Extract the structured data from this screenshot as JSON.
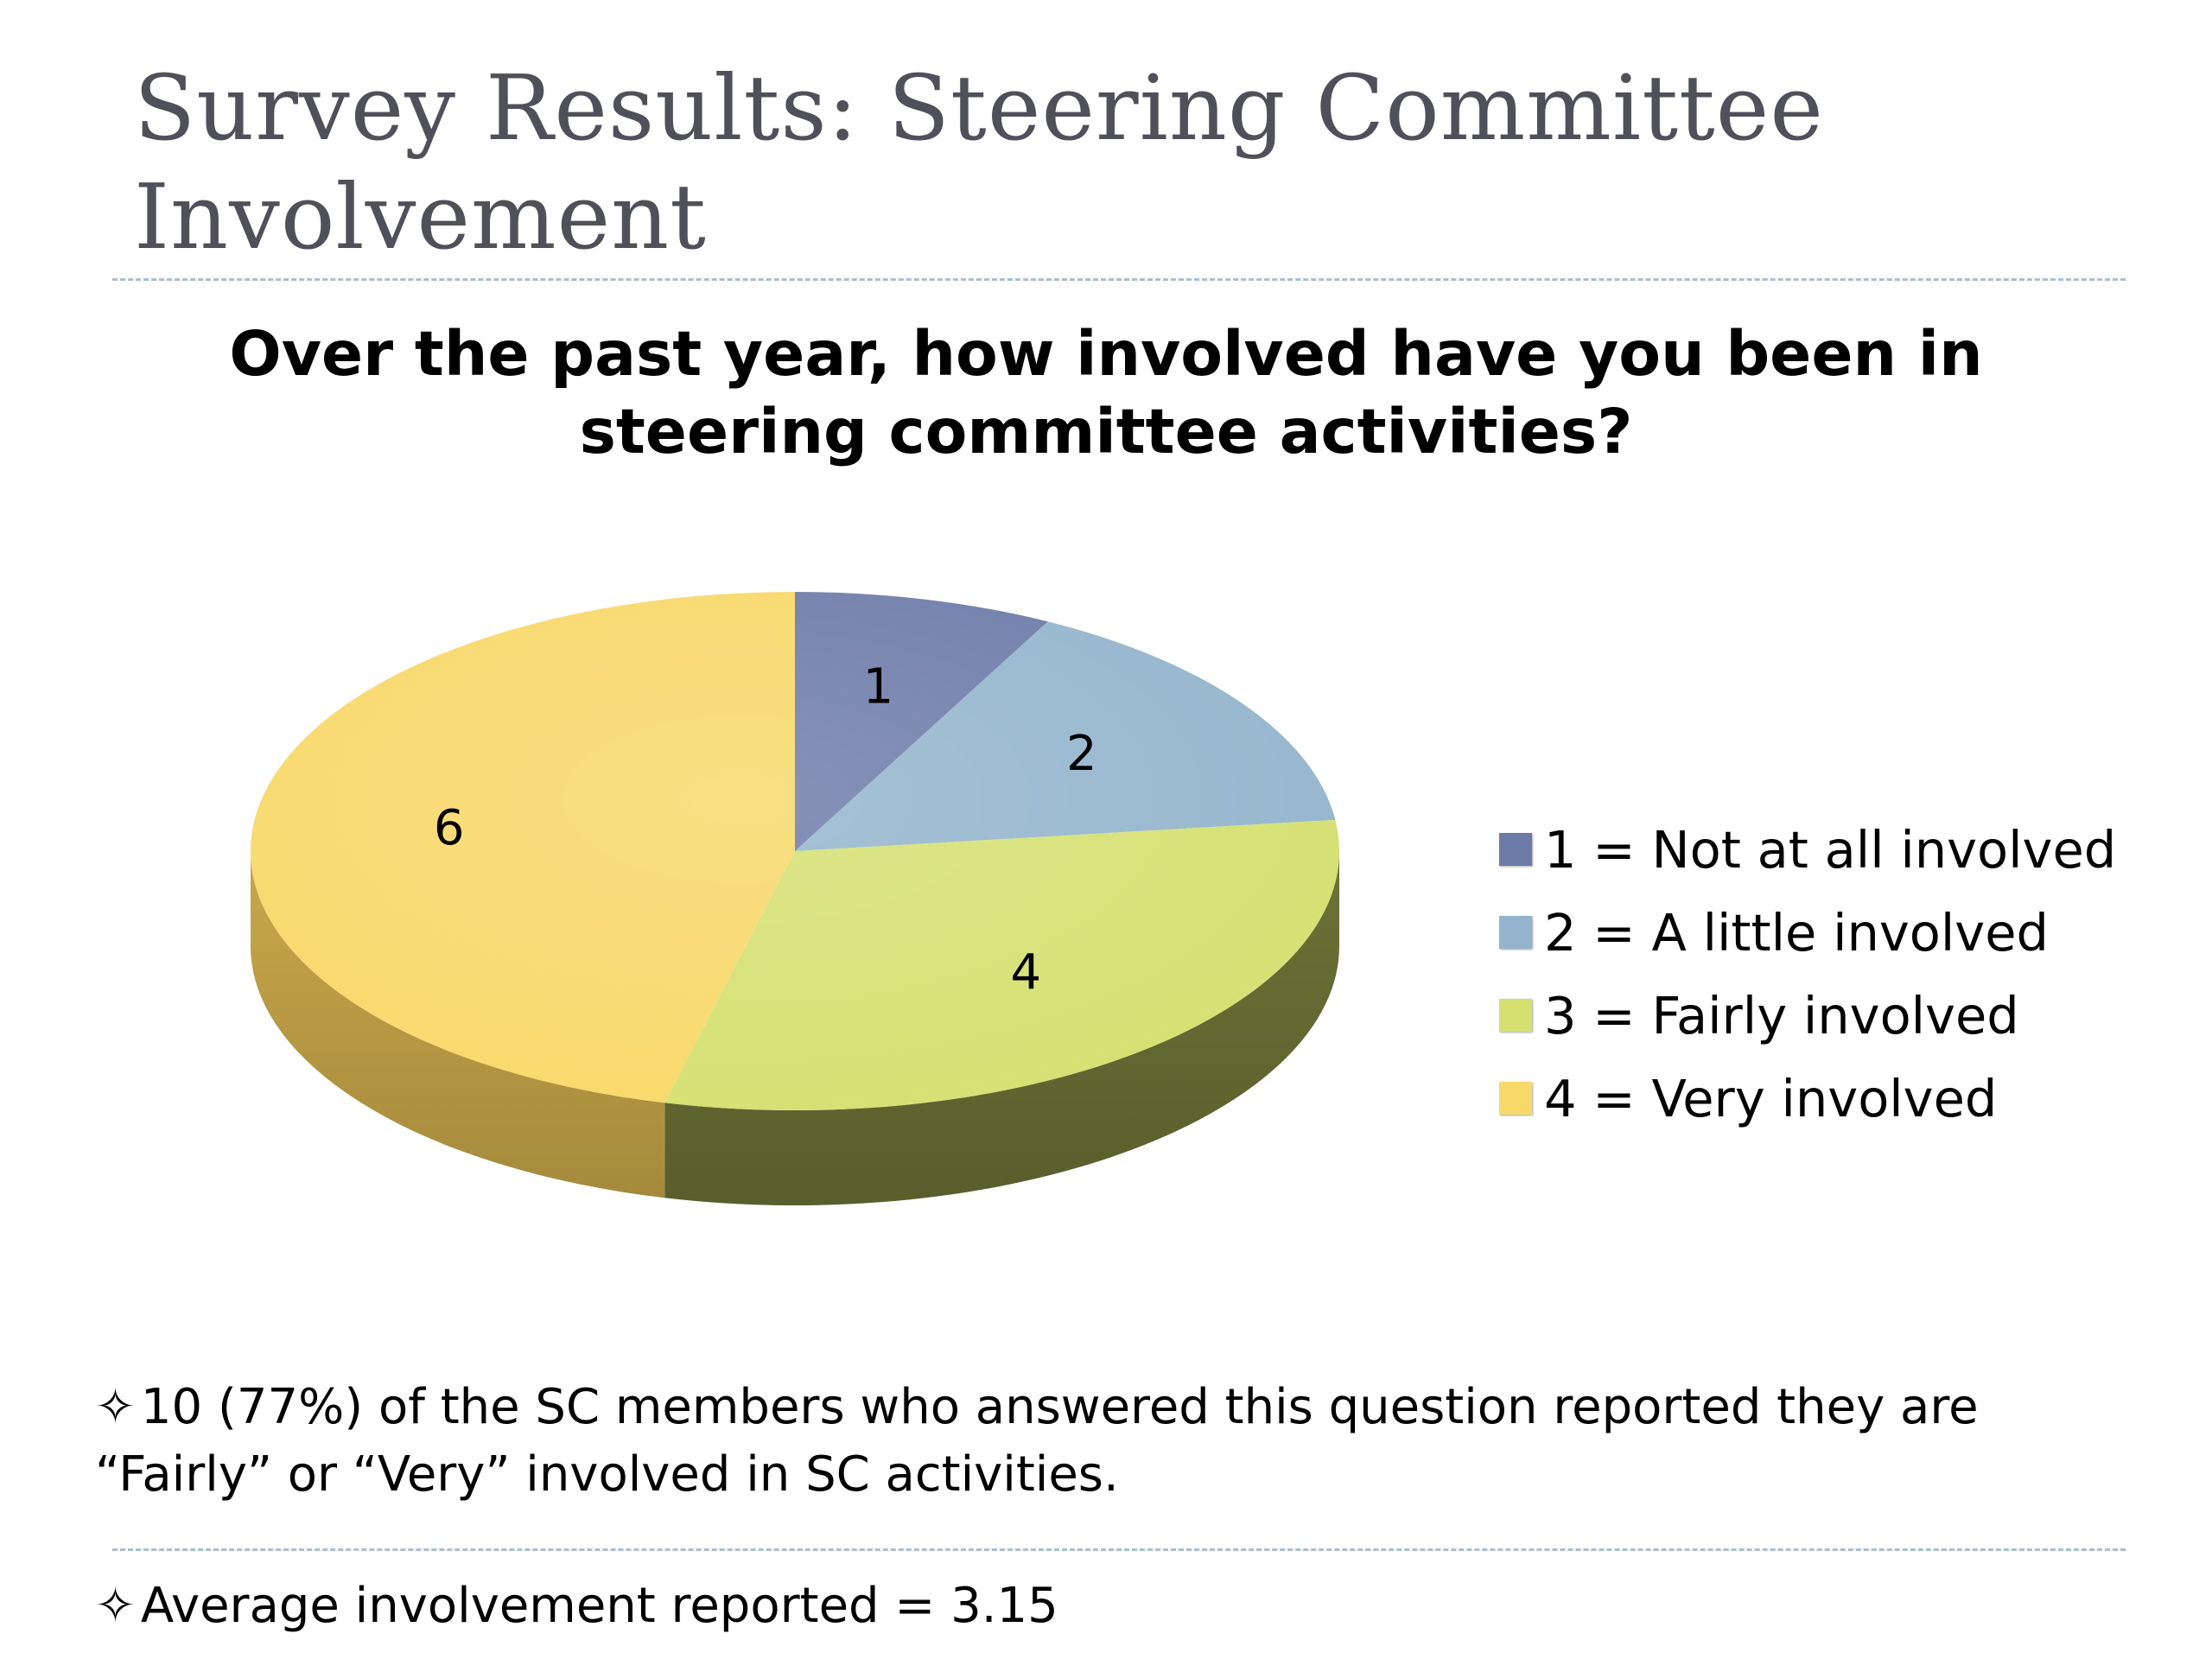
{
  "slide": {
    "title": "Survey Results: Steering Committee\nInvolvement"
  },
  "chart_data": {
    "type": "pie",
    "title": "Over the past year, how involved have you been in\nsteering committee activities?",
    "categories": [
      "1 = Not at all involved",
      "2 = A little involved",
      "3 = Fairly involved",
      "4 = Very involved"
    ],
    "values": [
      1,
      2,
      4,
      6
    ],
    "data_labels": [
      "1",
      "2",
      "4",
      "6"
    ],
    "colors": [
      "#6c7aa8",
      "#93b4cc",
      "#d4e070",
      "#f8d868"
    ],
    "side_colors": [
      "#4a5578",
      "#6f8ca3",
      "#6b7336",
      "#c9a84a"
    ],
    "style": "3d",
    "legend": "right"
  },
  "notes": {
    "bullet_icon": "four-pointed-star-icon",
    "bullet_glyph": "✧",
    "first": "10 (77%) of the SC members who answered this question reported they are “Fairly” or “Very” involved in SC activities.",
    "second": "Average involvement reported = 3.15"
  }
}
